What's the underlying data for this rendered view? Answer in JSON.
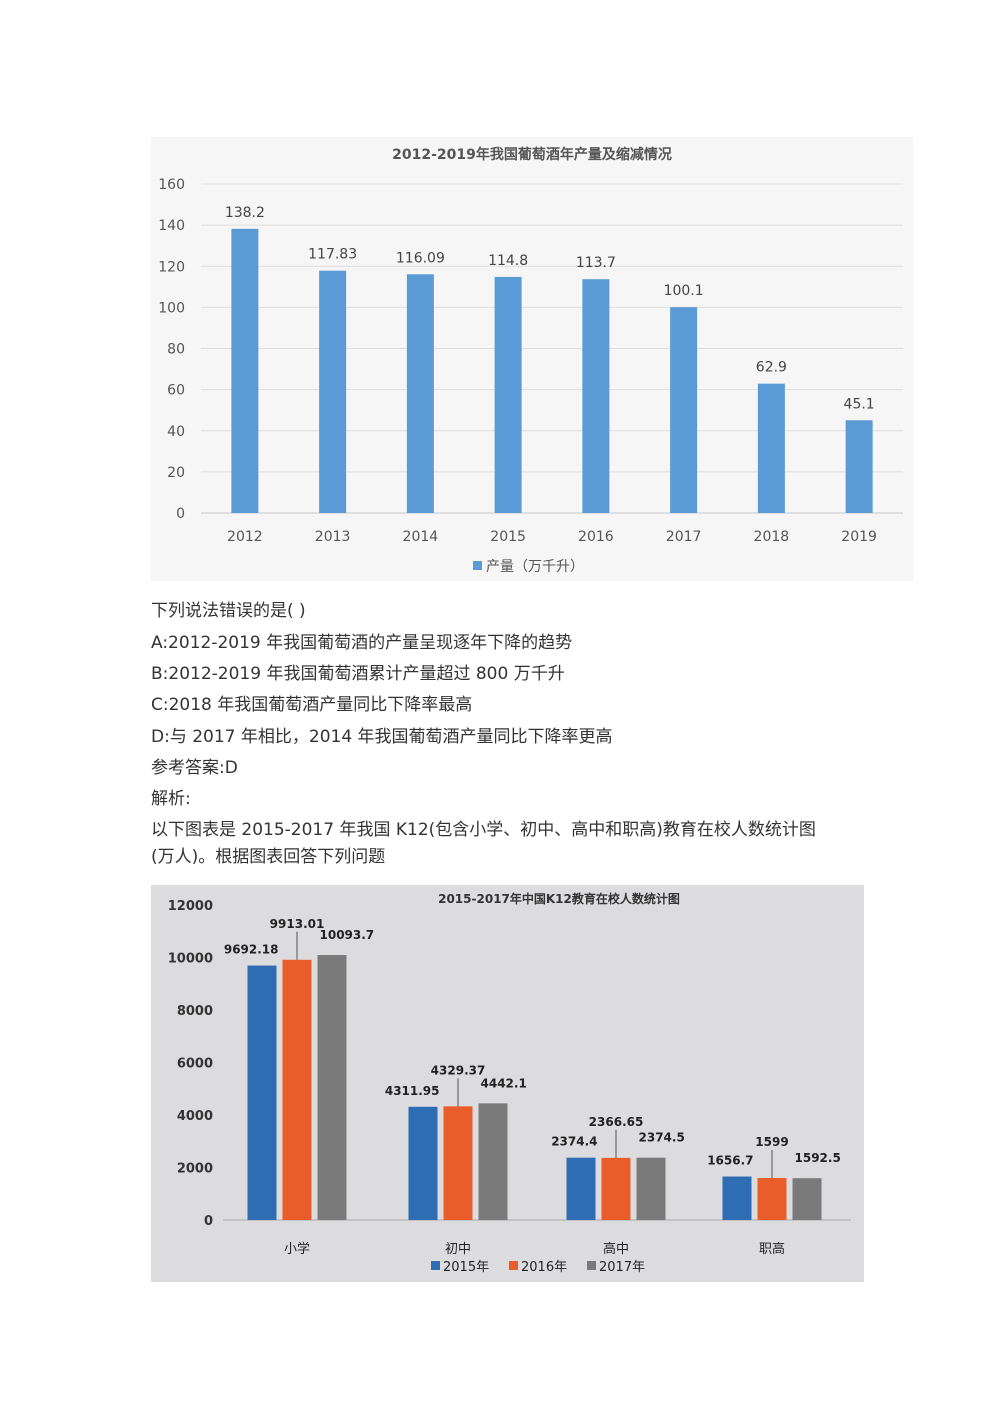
{
  "chart_data": [
    {
      "type": "bar",
      "title": "2012-2019年我国葡萄酒年产量及缩减情况",
      "categories": [
        "2012",
        "2013",
        "2014",
        "2015",
        "2016",
        "2017",
        "2018",
        "2019"
      ],
      "series": [
        {
          "name": "产量（万千升）",
          "values": [
            138.2,
            117.83,
            116.09,
            114.8,
            113.7,
            100.1,
            62.9,
            45.1
          ],
          "labels": [
            "138.2",
            "117.83",
            "116.09",
            "114.8",
            "113.7",
            "100.1",
            "62.9",
            "45.1"
          ]
        }
      ],
      "ylim": [
        0,
        160
      ],
      "yticks": [
        0,
        20,
        40,
        60,
        80,
        100,
        120,
        140,
        160
      ],
      "grid": true,
      "legend": "bottom",
      "colors": [
        "#5b9bd5"
      ]
    },
    {
      "type": "bar",
      "title": "2015-2017年中国K12教育在校人数统计图",
      "categories": [
        "小学",
        "初中",
        "高中",
        "职高"
      ],
      "series": [
        {
          "name": "2015年",
          "values": [
            9692.18,
            4311.95,
            2374.4,
            1656.7
          ]
        },
        {
          "name": "2016年",
          "values": [
            9913.01,
            4329.37,
            2366.65,
            1599
          ]
        },
        {
          "name": "2017年",
          "values": [
            10093.7,
            4442.1,
            2374.5,
            1592.5
          ]
        }
      ],
      "ylim": [
        0,
        12000
      ],
      "yticks": [
        0,
        2000,
        4000,
        6000,
        8000,
        10000,
        12000
      ],
      "grid": false,
      "legend": "bottom",
      "colors": [
        "#2e6db4",
        "#e85d2a",
        "#7a7a7a"
      ]
    }
  ],
  "question": {
    "stem": "下列说法错误的是( )",
    "options": [
      "A:2012-2019 年我国葡萄酒的产量呈现逐年下降的趋势",
      "B:2012-2019 年我国葡萄酒累计产量超过 800 万千升",
      "C:2018 年我国葡萄酒产量同比下降率最高",
      "D:与 2017 年相比，2014 年我国葡萄酒产量同比下降率更高"
    ],
    "answer": "参考答案:D",
    "analysis": "解析:"
  },
  "intro": {
    "line1": "以下图表是 2015-2017 年我国 K12(包含小学、初中、高中和职高)教育在校人数统计图",
    "line2": "(万人)。根据图表回答下列问题"
  }
}
